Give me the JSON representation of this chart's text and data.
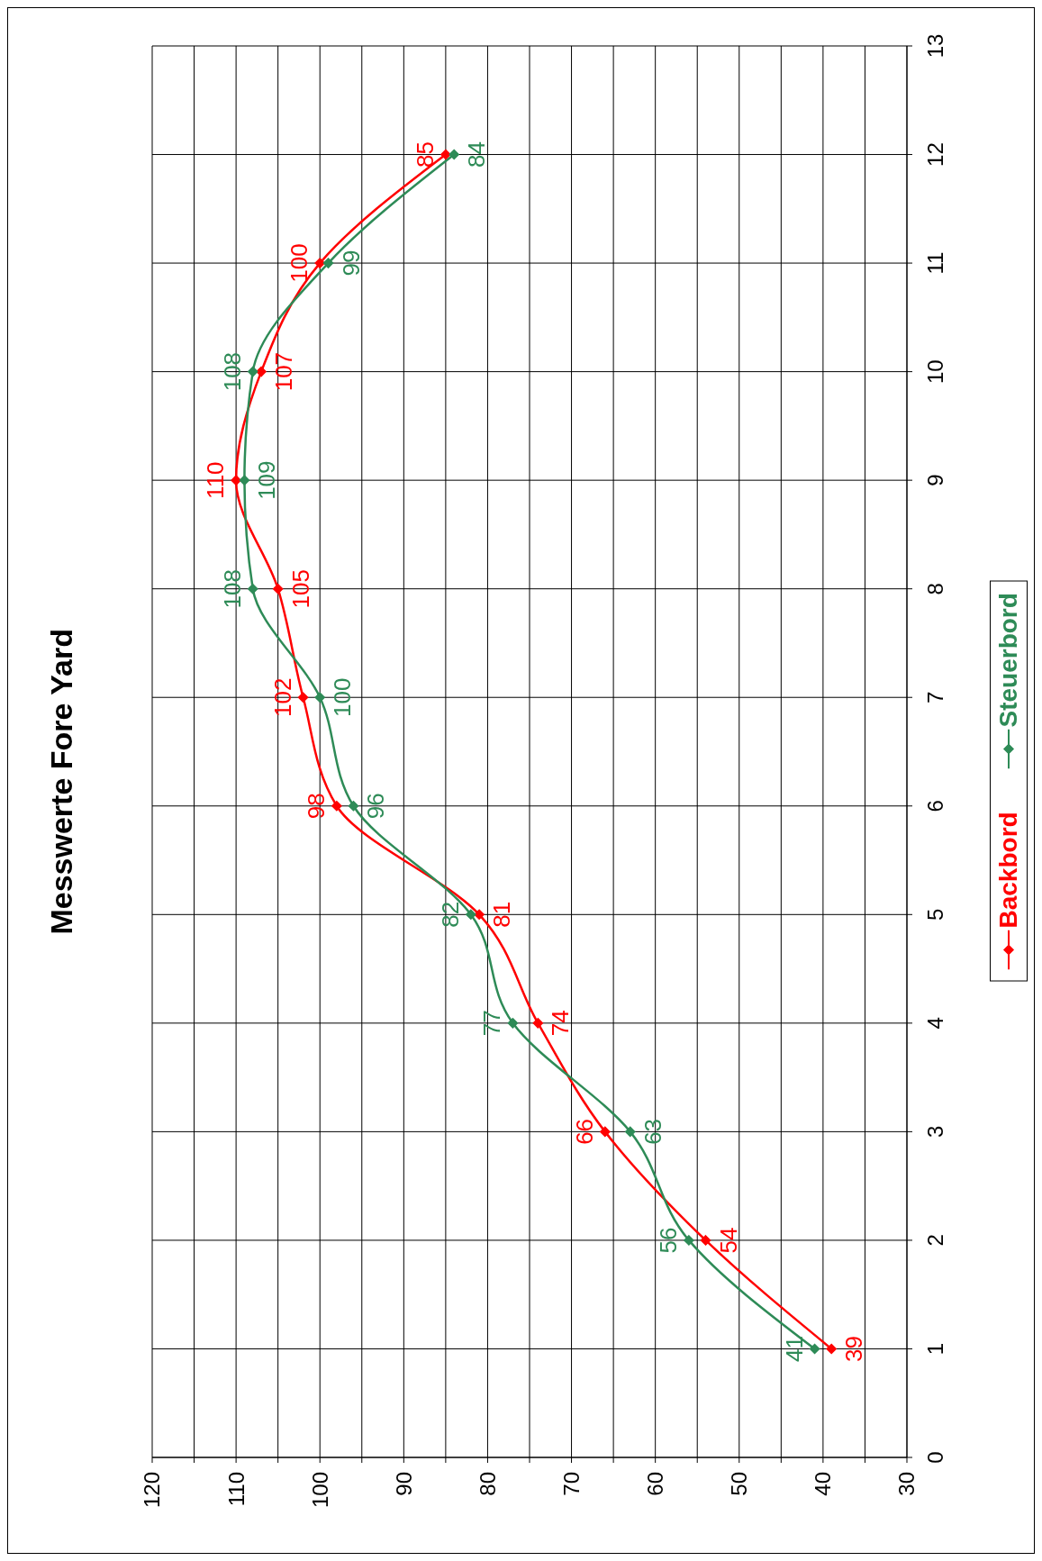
{
  "chart_data": {
    "type": "line",
    "title": "Messwerte Fore Yard",
    "series": [
      {
        "name": "Backbord",
        "color": "#ff0000",
        "x": [
          39,
          54,
          66,
          74,
          81,
          98,
          102,
          105,
          110,
          107,
          100,
          85
        ],
        "values": [
          1,
          2,
          3,
          4,
          5,
          6,
          7,
          8,
          9,
          10,
          11,
          12
        ]
      },
      {
        "name": "Steuerbord",
        "color": "#2e8b57",
        "x": [
          41,
          56,
          63,
          77,
          82,
          96,
          100,
          108,
          109,
          108,
          99,
          84
        ],
        "values": [
          1,
          2,
          3,
          4,
          5,
          6,
          7,
          8,
          9,
          10,
          11,
          12
        ]
      }
    ],
    "xlim": [
      120,
      30
    ],
    "xticks": [
      120,
      {
        "value": 115,
        "label": null
      },
      110,
      {
        "value": 105,
        "label": null
      },
      100,
      {
        "value": 95,
        "label": null
      },
      90,
      {
        "value": 85,
        "label": null
      },
      80,
      {
        "value": 75,
        "label": null
      },
      70,
      {
        "value": 65,
        "label": null
      },
      60,
      {
        "value": 55,
        "label": null
      },
      50,
      {
        "value": 45,
        "label": null
      },
      40,
      {
        "value": 35,
        "label": null
      },
      30
    ],
    "ylim": [
      0,
      13
    ],
    "yticks": [
      0,
      1,
      2,
      3,
      4,
      5,
      6,
      7,
      8,
      9,
      10,
      11,
      12,
      13
    ],
    "annotations": [
      {
        "text": "39",
        "x": 39,
        "y": 1
      },
      {
        "text": "54",
        "x": 54,
        "y": 2
      },
      {
        "text": "66",
        "x": 66,
        "y": 3
      },
      {
        "text": "74",
        "x": 74,
        "y": 4
      },
      {
        "text": "81",
        "x": 81,
        "y": 5
      },
      {
        "text": "98",
        "x": 98,
        "y": 6
      },
      {
        "text": "102",
        "x": 102,
        "y": 7
      },
      {
        "text": "105",
        "x": 105,
        "y": 8
      },
      {
        "text": "110",
        "x": 110,
        "y": 9
      },
      {
        "text": "107",
        "x": 107,
        "y": 10
      },
      {
        "text": "100",
        "x": 100,
        "y": 11
      },
      {
        "text": "85",
        "x": 85,
        "y": 12
      },
      {
        "text": "41",
        "x": 41,
        "y": 1
      },
      {
        "text": "56",
        "x": 56,
        "y": 2
      },
      {
        "text": "63",
        "x": 63,
        "y": 3
      },
      {
        "text": "77",
        "x": 77,
        "y": 4
      },
      {
        "text": "82",
        "x": 82,
        "y": 5
      },
      {
        "text": "96",
        "x": 96,
        "y": 6
      },
      {
        "text": "100",
        "x": 100,
        "y": 7
      },
      {
        "text": "108",
        "x": 108,
        "y": 8
      },
      {
        "text": "109",
        "x": 109,
        "y": 9
      },
      {
        "text": "108",
        "x": 108,
        "y": 10
      },
      {
        "text": "99",
        "x": 99,
        "y": 11
      },
      {
        "text": "84",
        "x": 84,
        "y": 12
      }
    ],
    "grid": true,
    "legend": "right",
    "marker": "diamond",
    "line_style": "solid"
  }
}
